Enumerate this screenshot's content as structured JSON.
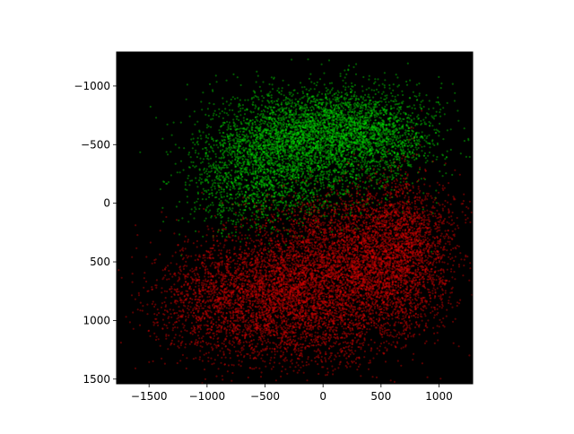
{
  "chart_data": {
    "type": "scatter",
    "title": "",
    "xlabel": "",
    "ylabel": "",
    "xlim": [
      -1780,
      1290
    ],
    "ylim": [
      1540,
      -1290
    ],
    "y_inverted": true,
    "grid": false,
    "legend": "none",
    "background_color": "#000000",
    "x_ticks": [
      -1500,
      -1000,
      -500,
      0,
      500,
      1000
    ],
    "x_tick_labels": [
      "−1500",
      "−1000",
      "−500",
      "0",
      "500",
      "1000"
    ],
    "y_ticks": [
      -1000,
      -500,
      0,
      500,
      1000,
      1500
    ],
    "y_tick_labels": [
      "−1000",
      "−500",
      "0",
      "500",
      "1000",
      "1500"
    ],
    "series": [
      {
        "color": "#00dd00",
        "clusters": [
          {
            "center": [
              0,
              -640
            ],
            "spread": [
              430,
              190
            ],
            "count": 2600
          },
          {
            "center": [
              -450,
              -440
            ],
            "spread": [
              330,
              170
            ],
            "count": 1100
          },
          {
            "center": [
              450,
              -560
            ],
            "spread": [
              260,
              170
            ],
            "count": 900
          },
          {
            "center": [
              -700,
              -100
            ],
            "spread": [
              230,
              200
            ],
            "count": 500
          },
          {
            "center": [
              -150,
              -150
            ],
            "spread": [
              420,
              170
            ],
            "count": 700
          }
        ]
      },
      {
        "color": "#dd0000",
        "clusters": [
          {
            "center": [
              -350,
              730
            ],
            "spread": [
              450,
              250
            ],
            "count": 3200
          },
          {
            "center": [
              650,
              450
            ],
            "spread": [
              230,
              330
            ],
            "count": 2300
          },
          {
            "center": [
              200,
              550
            ],
            "spread": [
              380,
              260
            ],
            "count": 1800
          },
          {
            "center": [
              -950,
              900
            ],
            "spread": [
              290,
              250
            ],
            "count": 700
          },
          {
            "center": [
              -150,
              1150
            ],
            "spread": [
              400,
              150
            ],
            "count": 700
          },
          {
            "center": [
              300,
              150
            ],
            "spread": [
              450,
              160
            ],
            "count": 600
          }
        ]
      }
    ]
  }
}
